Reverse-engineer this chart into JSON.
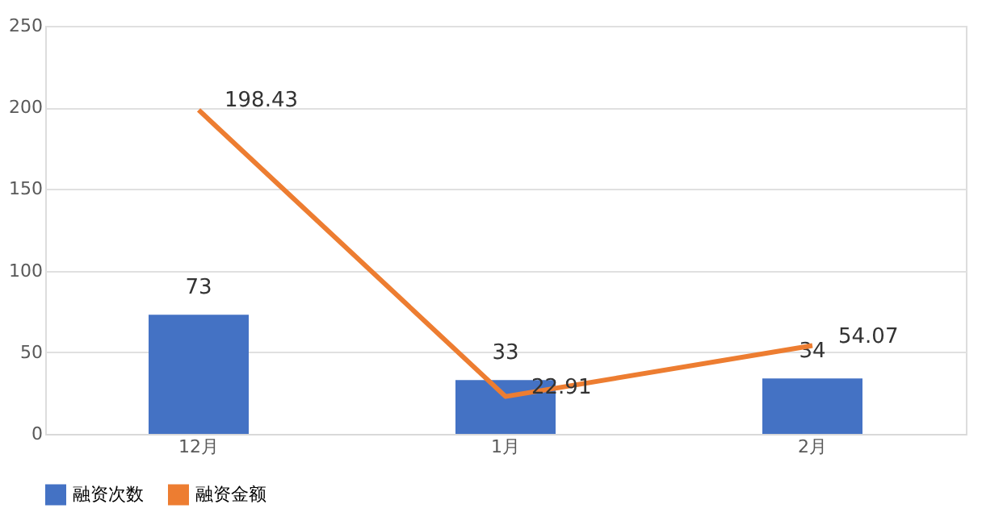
{
  "chart_data": {
    "type": "bar",
    "categories": [
      "12月",
      "1月",
      "2月"
    ],
    "series": [
      {
        "name": "融资次数",
        "color": "#4472c4",
        "values": [
          73,
          33,
          34
        ]
      },
      {
        "name": "融资金额",
        "type": "line",
        "color": "#ed7d31",
        "values": [
          198.43,
          22.91,
          54.07
        ]
      }
    ],
    "ylim": [
      0,
      250
    ],
    "yticks": [
      0,
      50,
      100,
      150,
      200,
      250
    ],
    "grid": "y",
    "legend": "bottom",
    "data_labels": true,
    "marker": "none",
    "line_style": "solid"
  }
}
